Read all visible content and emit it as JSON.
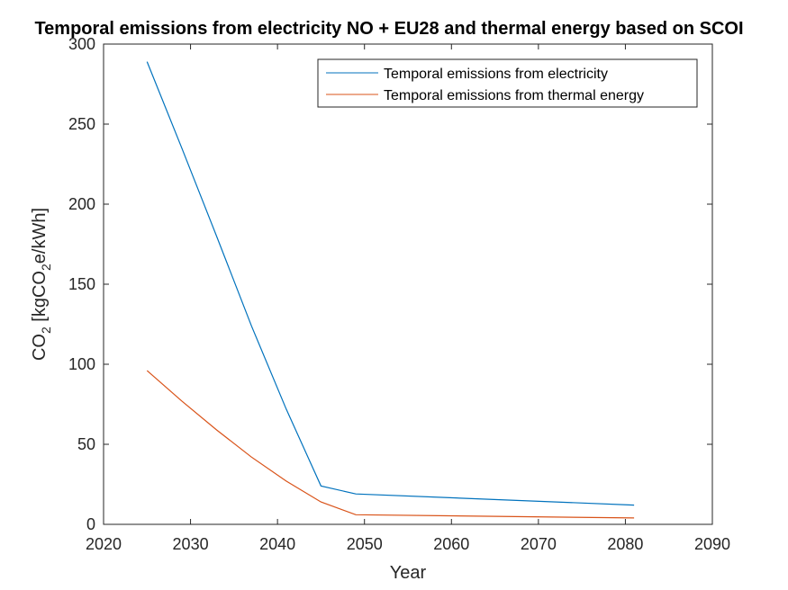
{
  "chart_data": {
    "type": "line",
    "title": "Temporal emissions from electricity NO + EU28 and thermal energy based on SCOI",
    "xlabel": "Year",
    "ylabel": {
      "prefix": "CO",
      "sub1": "2",
      "mid": " [kgCO",
      "sub2": "2",
      "suffix": "e/kWh]"
    },
    "xlim": [
      2020,
      2090
    ],
    "ylim": [
      0,
      300
    ],
    "xticks": [
      2020,
      2030,
      2040,
      2050,
      2060,
      2070,
      2080,
      2090
    ],
    "yticks": [
      0,
      50,
      100,
      150,
      200,
      250,
      300
    ],
    "grid": false,
    "legend_position": "top-right",
    "series": [
      {
        "name": "Temporal emissions from electricity",
        "color": "#0072bd",
        "x": [
          2025,
          2029,
          2033,
          2037,
          2041,
          2045,
          2049,
          2081
        ],
        "y": [
          289,
          235,
          180,
          124,
          72,
          24,
          19,
          12
        ]
      },
      {
        "name": "Temporal emissions from thermal energy",
        "color": "#d95319",
        "x": [
          2025,
          2029,
          2033,
          2037,
          2041,
          2045,
          2049,
          2081
        ],
        "y": [
          96,
          77,
          59,
          42,
          27,
          14,
          6,
          4
        ]
      }
    ]
  }
}
